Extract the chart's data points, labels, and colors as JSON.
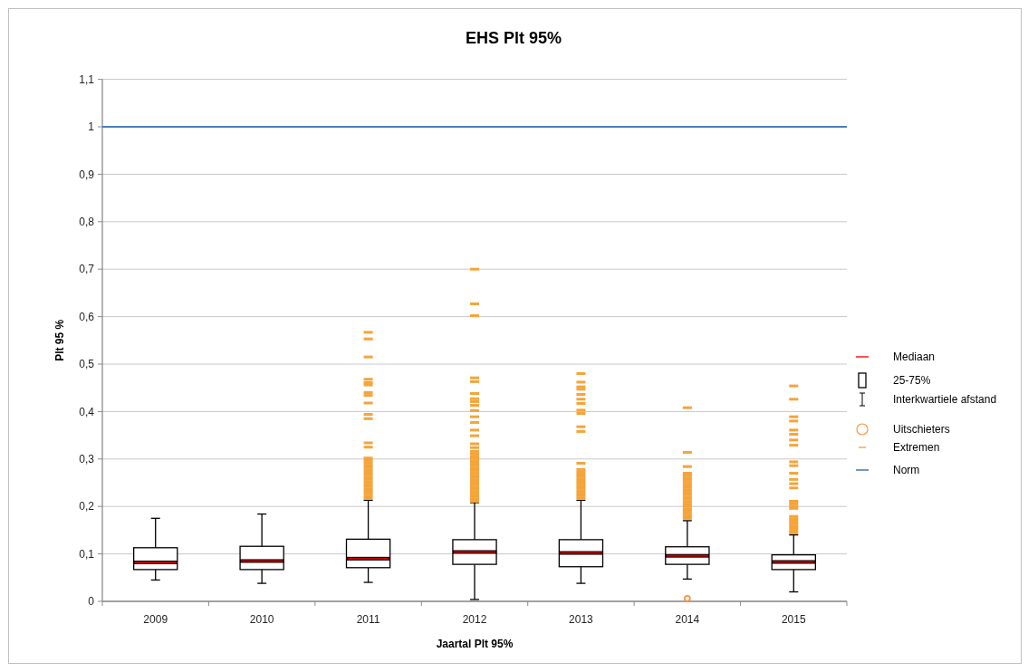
{
  "chart_data": {
    "type": "box",
    "title": "EHS Plt 95%",
    "xlabel": "Jaartal Plt 95%",
    "ylabel": "Plt 95 %",
    "categories": [
      "2009",
      "2010",
      "2011",
      "2012",
      "2013",
      "2014",
      "2015"
    ],
    "ylim": [
      0,
      1.1
    ],
    "yticks": [
      0,
      {
        "value": 0.1,
        "label": "0,1"
      },
      {
        "value": 0.2,
        "label": "0,2"
      },
      {
        "value": 0.3,
        "label": "0,3"
      },
      {
        "value": 0.4,
        "label": "0,4"
      },
      {
        "value": 0.5,
        "label": "0,5"
      },
      {
        "value": 0.6,
        "label": "0,6"
      },
      {
        "value": 0.7,
        "label": "0,7"
      },
      {
        "value": 0.8,
        "label": "0,8"
      },
      {
        "value": 0.9,
        "label": "0,9"
      },
      1,
      {
        "value": 1.1,
        "label": "1,1"
      }
    ],
    "grid": "y",
    "legend": "right",
    "annotations": [
      "Mediaan",
      "Interkwartiele afstand",
      "Extremen"
    ],
    "ref_lines": [
      {
        "axis": "y",
        "value": 1,
        "label": "Norm",
        "color": "#4a7ebb"
      }
    ],
    "series": [
      {
        "name": "25-75%",
        "color": "#000000",
        "boxes": [
          {
            "low": 0.045,
            "q1": 0.067,
            "median": 0.082,
            "q3": 0.113,
            "high": 0.175
          },
          {
            "low": 0.038,
            "q1": 0.067,
            "median": 0.085,
            "q3": 0.116,
            "high": 0.184
          },
          {
            "low": 0.04,
            "q1": 0.071,
            "median": 0.09,
            "q3": 0.131,
            "high": 0.213,
            "outliers": [
              0.567,
              0.553,
              0.515,
              0.468,
              0.461,
              0.456,
              0.44,
              0.434,
              0.418,
              0.394,
              0.385,
              0.334,
              0.325,
              0.302,
              0.297,
              0.292,
              0.287,
              0.282,
              0.277,
              0.272,
              0.267,
              0.262,
              0.257,
              0.252,
              0.247,
              0.242,
              0.237,
              0.232,
              0.227,
              0.222,
              0.217
            ]
          },
          {
            "low": 0.004,
            "q1": 0.078,
            "median": 0.104,
            "q3": 0.13,
            "high": 0.208,
            "outliers": [
              0.7,
              0.627,
              0.602,
              0.471,
              0.463,
              0.438,
              0.427,
              0.421,
              0.413,
              0.402,
              0.389,
              0.377,
              0.361,
              0.349,
              0.332,
              0.324,
              0.316,
              0.311,
              0.306,
              0.301,
              0.296,
              0.291,
              0.286,
              0.281,
              0.276,
              0.271,
              0.266,
              0.261,
              0.256,
              0.251,
              0.246,
              0.241,
              0.236,
              0.231,
              0.226,
              0.221,
              0.216,
              0.211
            ]
          },
          {
            "low": 0.038,
            "q1": 0.073,
            "median": 0.102,
            "q3": 0.13,
            "high": 0.213,
            "outliers": [
              0.48,
              0.462,
              0.452,
              0.447,
              0.436,
              0.426,
              0.417,
              0.403,
              0.396,
              0.368,
              0.358,
              0.291,
              0.278,
              0.273,
              0.268,
              0.263,
              0.258,
              0.253,
              0.248,
              0.243,
              0.238,
              0.233,
              0.228,
              0.223,
              0.218
            ]
          },
          {
            "low": 0.047,
            "q1": 0.078,
            "median": 0.096,
            "q3": 0.115,
            "high": 0.17,
            "outliers": [
              0.408,
              0.314,
              0.284,
              0.27,
              0.265,
              0.26,
              0.255,
              0.25,
              0.245,
              0.24,
              0.235,
              0.23,
              0.225,
              0.22,
              0.215,
              0.21,
              0.205,
              0.2,
              0.195,
              0.19,
              0.185,
              0.18,
              0.175
            ]
          },
          {
            "low": 0.02,
            "q1": 0.067,
            "median": 0.083,
            "q3": 0.098,
            "high": 0.14,
            "outliers": [
              0.454,
              0.426,
              0.389,
              0.38,
              0.361,
              0.352,
              0.34,
              0.329,
              0.294,
              0.286,
              0.27,
              0.257,
              0.248,
              0.239,
              0.211,
              0.206,
              0.201,
              0.196,
              0.179,
              0.174,
              0.169,
              0.164,
              0.159,
              0.154,
              0.149,
              0.144
            ]
          }
        ]
      },
      {
        "type": "scatter",
        "name": "Uitschieters",
        "color": "#f79646",
        "marker": "circle",
        "values": [
          null,
          null,
          null,
          null,
          null,
          0.006,
          null
        ]
      }
    ]
  }
}
